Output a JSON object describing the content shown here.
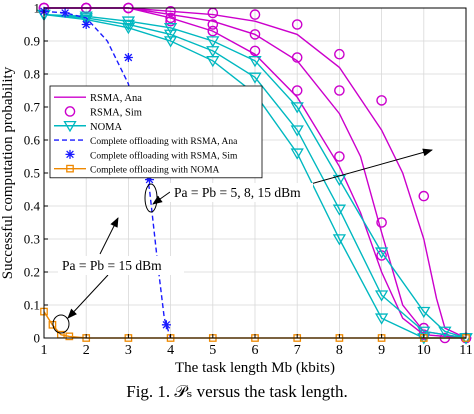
{
  "figure": {
    "caption": "Fig. 1.  𝒫ₛ versus the task length."
  },
  "chart_data": {
    "type": "line",
    "xlabel": "The task length Mb (kbits)",
    "ylabel": "Successful computation probability",
    "xlim": [
      1,
      11
    ],
    "ylim": [
      0,
      1
    ],
    "x_ticks": [
      "1",
      "2",
      "3",
      "4",
      "5",
      "6",
      "7",
      "8",
      "9",
      "10",
      "11"
    ],
    "y_ticks": [
      "0",
      "0.1",
      "0.2",
      "0.3",
      "0.4",
      "0.5",
      "0.6",
      "0.7",
      "0.8",
      "0.9",
      "1"
    ],
    "grid": true,
    "legend_position": "left-middle",
    "colors": {
      "magenta": "#cc00cc",
      "cyan": "#00b8c0",
      "blue": "#1a1aff",
      "orange": "#ee8800"
    },
    "series": [
      {
        "name": "RSMA, Ana",
        "color": "#cc00cc",
        "style": "solid",
        "marker": "none",
        "group": "5 dBm",
        "points": [
          [
            1,
            1
          ],
          [
            2,
            1
          ],
          [
            3,
            1
          ],
          [
            4,
            0.99
          ],
          [
            5,
            0.98
          ],
          [
            6,
            0.96
          ],
          [
            7,
            0.92
          ],
          [
            8,
            0.82
          ],
          [
            9,
            0.63
          ],
          [
            9.5,
            0.5
          ],
          [
            10,
            0.3
          ],
          [
            10.3,
            0.12
          ],
          [
            10.5,
            0.03
          ],
          [
            11,
            0
          ]
        ]
      },
      {
        "name": "RSMA, Sim",
        "color": "#cc00cc",
        "style": "none",
        "marker": "circle",
        "group": "5 dBm",
        "points": [
          [
            1,
            1
          ],
          [
            2,
            1
          ],
          [
            3,
            1
          ],
          [
            4,
            0.99
          ],
          [
            5,
            0.985
          ],
          [
            6,
            0.98
          ],
          [
            7,
            0.95
          ],
          [
            8,
            0.86
          ],
          [
            9,
            0.72
          ],
          [
            10,
            0.43
          ],
          [
            10.5,
            0
          ],
          [
            11,
            0
          ]
        ]
      },
      {
        "name": "",
        "color": "#cc00cc",
        "style": "solid",
        "marker": "none",
        "group": "8 dBm",
        "points": [
          [
            1,
            1
          ],
          [
            2,
            1
          ],
          [
            3,
            1
          ],
          [
            4,
            0.98
          ],
          [
            5,
            0.96
          ],
          [
            6,
            0.92
          ],
          [
            7,
            0.84
          ],
          [
            8,
            0.68
          ],
          [
            8.5,
            0.55
          ],
          [
            9,
            0.32
          ],
          [
            9.5,
            0.1
          ],
          [
            10,
            0.02
          ],
          [
            11,
            0
          ]
        ]
      },
      {
        "name": "",
        "color": "#cc00cc",
        "style": "none",
        "marker": "circle",
        "group": "8 dBm",
        "points": [
          [
            1,
            1
          ],
          [
            2,
            1
          ],
          [
            3,
            1
          ],
          [
            4,
            0.97
          ],
          [
            5,
            0.95
          ],
          [
            6,
            0.92
          ],
          [
            7,
            0.85
          ],
          [
            8,
            0.75
          ],
          [
            9,
            0.35
          ],
          [
            10,
            0.03
          ],
          [
            11,
            0
          ]
        ]
      },
      {
        "name": "",
        "color": "#cc00cc",
        "style": "solid",
        "marker": "none",
        "group": "15 dBm",
        "points": [
          [
            1,
            1
          ],
          [
            2,
            1
          ],
          [
            3,
            1
          ],
          [
            4,
            0.97
          ],
          [
            5,
            0.93
          ],
          [
            6,
            0.86
          ],
          [
            7,
            0.73
          ],
          [
            8,
            0.52
          ],
          [
            8.5,
            0.38
          ],
          [
            9,
            0.2
          ],
          [
            9.5,
            0.06
          ],
          [
            10,
            0.01
          ],
          [
            11,
            0
          ]
        ]
      },
      {
        "name": "",
        "color": "#cc00cc",
        "style": "none",
        "marker": "circle",
        "group": "15 dBm",
        "points": [
          [
            1,
            1
          ],
          [
            2,
            1
          ],
          [
            3,
            1
          ],
          [
            4,
            0.96
          ],
          [
            5,
            0.93
          ],
          [
            6,
            0.87
          ],
          [
            7,
            0.75
          ],
          [
            8,
            0.55
          ],
          [
            9,
            0.25
          ],
          [
            10,
            0.01
          ],
          [
            11,
            0
          ]
        ]
      },
      {
        "name": "NOMA",
        "color": "#00b8c0",
        "style": "solid",
        "marker": "triangle",
        "group": "5 dBm",
        "points": [
          [
            1,
            0.98
          ],
          [
            2,
            0.975
          ],
          [
            3,
            0.96
          ],
          [
            4,
            0.94
          ],
          [
            5,
            0.9
          ],
          [
            6,
            0.84
          ],
          [
            7,
            0.7
          ],
          [
            8,
            0.48
          ],
          [
            9,
            0.26
          ],
          [
            10,
            0.08
          ],
          [
            10.5,
            0.02
          ],
          [
            11,
            0
          ]
        ]
      },
      {
        "name": "",
        "color": "#00b8c0",
        "style": "solid",
        "marker": "triangle",
        "group": "8 dBm",
        "points": [
          [
            1,
            0.98
          ],
          [
            2,
            0.97
          ],
          [
            3,
            0.95
          ],
          [
            4,
            0.92
          ],
          [
            5,
            0.87
          ],
          [
            6,
            0.79
          ],
          [
            7,
            0.63
          ],
          [
            8,
            0.39
          ],
          [
            9,
            0.13
          ],
          [
            10,
            0.02
          ],
          [
            11,
            0
          ]
        ]
      },
      {
        "name": "",
        "color": "#00b8c0",
        "style": "solid",
        "marker": "triangle",
        "group": "15 dBm",
        "points": [
          [
            1,
            0.98
          ],
          [
            2,
            0.965
          ],
          [
            3,
            0.94
          ],
          [
            4,
            0.9
          ],
          [
            5,
            0.84
          ],
          [
            6,
            0.74
          ],
          [
            7,
            0.56
          ],
          [
            8,
            0.3
          ],
          [
            9,
            0.06
          ],
          [
            10,
            0
          ],
          [
            11,
            0
          ]
        ]
      },
      {
        "name": "Complete offloading with RSMA, Ana",
        "color": "#1a1aff",
        "style": "dashed",
        "marker": "none",
        "points": [
          [
            1,
            0.99
          ],
          [
            1.5,
            0.985
          ],
          [
            2,
            0.97
          ],
          [
            2.5,
            0.9
          ],
          [
            3,
            0.77
          ],
          [
            3.3,
            0.58
          ],
          [
            3.5,
            0.45
          ],
          [
            3.7,
            0.22
          ],
          [
            3.85,
            0.06
          ],
          [
            4,
            0
          ]
        ]
      },
      {
        "name": "Complete offloading with RSMA, Sim",
        "color": "#1a1aff",
        "style": "none",
        "marker": "star",
        "points": [
          [
            1,
            0.99
          ],
          [
            1.5,
            0.985
          ],
          [
            2,
            0.95
          ],
          [
            3,
            0.85
          ],
          [
            3.5,
            0.48
          ],
          [
            3.9,
            0.04
          ]
        ]
      },
      {
        "name": "Complete offloading with NOMA",
        "color": "#ee8800",
        "style": "solid",
        "marker": "square",
        "points": [
          [
            1,
            0.08
          ],
          [
            1.2,
            0.04
          ],
          [
            1.4,
            0.01
          ],
          [
            1.6,
            0.005
          ],
          [
            2,
            0
          ],
          [
            3,
            0
          ],
          [
            4,
            0
          ],
          [
            5,
            0
          ],
          [
            6,
            0
          ],
          [
            7,
            0
          ],
          [
            8,
            0
          ],
          [
            9,
            0
          ],
          [
            10,
            0
          ],
          [
            11,
            0
          ]
        ]
      }
    ],
    "annotations": [
      {
        "text": "Pa = Pb = 5, 8, 15 dBm"
      },
      {
        "text": "Pa = Pb = 15 dBm"
      }
    ]
  }
}
